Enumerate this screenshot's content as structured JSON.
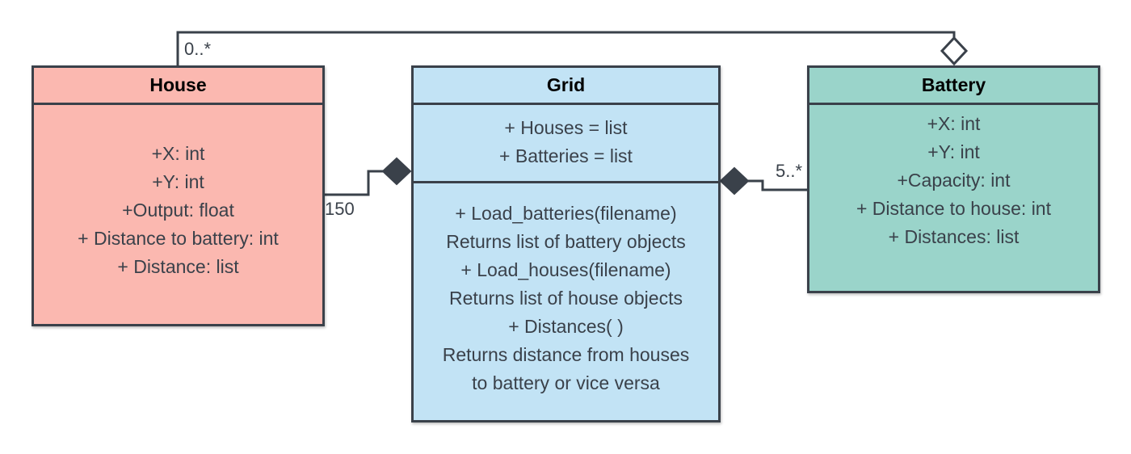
{
  "colors": {
    "house_fill": "#fbb8b0",
    "grid_fill": "#c2e3f5",
    "battery_fill": "#9ad4ca",
    "stroke": "#3a414a"
  },
  "classes": {
    "house": {
      "name": "House",
      "attributes": [
        "+X: int",
        "+Y: int",
        "+Output: float",
        "+ Distance to battery: int",
        "+ Distance: list"
      ]
    },
    "grid": {
      "name": "Grid",
      "attributes": [
        "+ Houses = list",
        "+ Batteries = list"
      ],
      "methods": [
        "+ Load_batteries(filename)",
        "Returns list of battery objects",
        "+ Load_houses(filename)",
        "Returns list of house objects",
        "+ Distances( )",
        "Returns distance from houses",
        "to battery or vice versa"
      ]
    },
    "battery": {
      "name": "Battery",
      "attributes": [
        "+X: int",
        "+Y: int",
        "+Capacity: int",
        "+ Distance to house: int",
        "+ Distances: list"
      ]
    }
  },
  "relations": {
    "house_battery": {
      "type": "aggregation",
      "multiplicity": "0..*"
    },
    "house_grid": {
      "type": "composition",
      "multiplicity": "150"
    },
    "battery_grid": {
      "type": "composition",
      "multiplicity": "5..*"
    }
  }
}
